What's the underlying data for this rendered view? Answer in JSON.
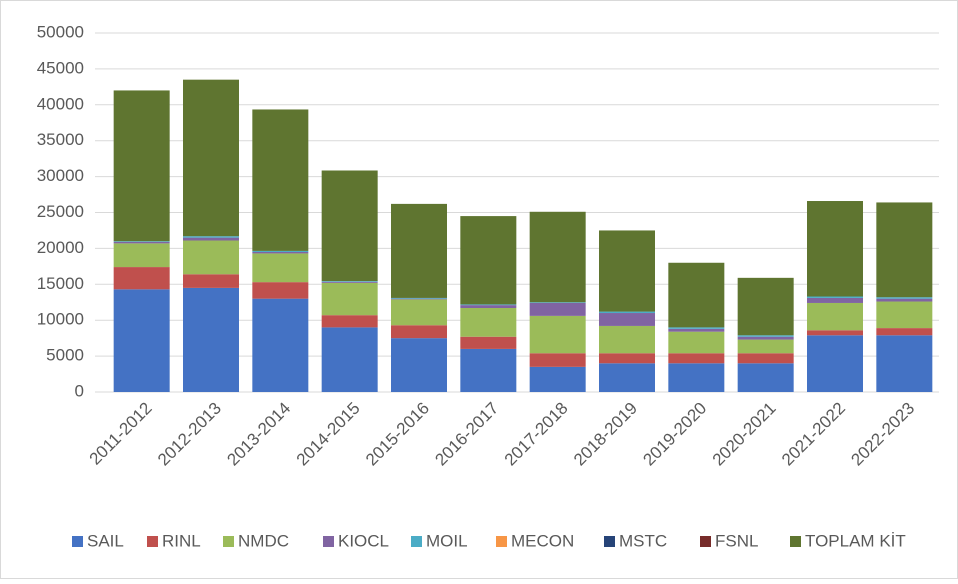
{
  "chart_data": {
    "type": "stacked_bar",
    "categories": [
      "2011-2012",
      "2012-2013",
      "2013-2014",
      "2014-2015",
      "2015-2016",
      "2016-2017",
      "2017-2018",
      "2018-2019",
      "2019-2020",
      "2020-2021",
      "2021-2022",
      "2022-2023"
    ],
    "series": [
      {
        "name": "SAIL",
        "color": "#4472c4",
        "values": [
          14300,
          14500,
          13000,
          9000,
          7500,
          6000,
          3500,
          4000,
          4000,
          4000,
          7900,
          7900
        ]
      },
      {
        "name": "RINL",
        "color": "#c0504d",
        "values": [
          3100,
          1900,
          2300,
          1700,
          1800,
          1700,
          1900,
          1400,
          1400,
          1400,
          700,
          1000
        ]
      },
      {
        "name": "NMDC",
        "color": "#9bbb59",
        "values": [
          3300,
          4700,
          4000,
          4500,
          3600,
          4000,
          5200,
          3800,
          3000,
          1900,
          3800,
          3700
        ]
      },
      {
        "name": "KIOCL",
        "color": "#8064a2",
        "values": [
          200,
          400,
          200,
          150,
          100,
          400,
          1800,
          1800,
          400,
          400,
          700,
          400
        ]
      },
      {
        "name": "MOIL",
        "color": "#4bacc6",
        "values": [
          100,
          200,
          150,
          100,
          100,
          100,
          100,
          200,
          200,
          200,
          200,
          200
        ]
      },
      {
        "name": "MECON",
        "color": "#f79646",
        "values": [
          0,
          0,
          0,
          0,
          0,
          0,
          0,
          0,
          0,
          0,
          0,
          0
        ]
      },
      {
        "name": "MSTC",
        "color": "#264478",
        "values": [
          0,
          0,
          0,
          0,
          0,
          0,
          0,
          0,
          0,
          0,
          0,
          0
        ]
      },
      {
        "name": "FSNL",
        "color": "#772c2a",
        "values": [
          0,
          0,
          0,
          0,
          0,
          0,
          0,
          0,
          0,
          0,
          0,
          0
        ]
      },
      {
        "name": "TOPLAM KİT",
        "color": "#5f7530",
        "values": [
          21000,
          21800,
          19700,
          15400,
          13100,
          12300,
          12600,
          11300,
          9000,
          8000,
          13300,
          13200
        ]
      }
    ],
    "ylim": [
      0,
      50000
    ],
    "yticks": [
      0,
      5000,
      10000,
      15000,
      20000,
      25000,
      30000,
      35000,
      40000,
      45000,
      50000
    ],
    "grid": true,
    "legend": "bottom"
  }
}
